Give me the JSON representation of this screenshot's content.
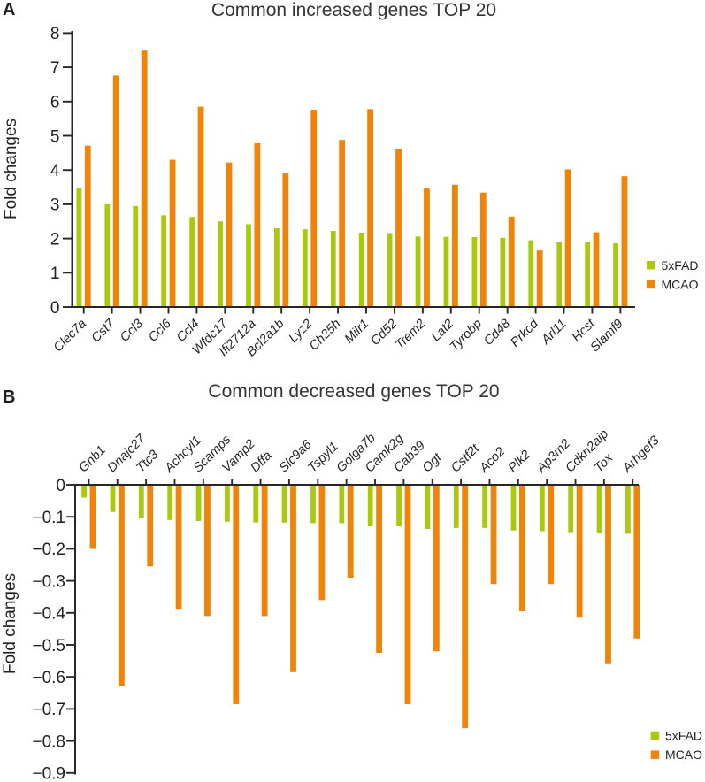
{
  "page": {
    "background": "#ffffff",
    "text_color": "#231f20"
  },
  "panels": [
    {
      "letter": "A",
      "title": "Common increased genes TOP 20"
    },
    {
      "letter": "B",
      "title": "Common decreased genes TOP 20"
    }
  ],
  "chart_data": [
    {
      "type": "bar",
      "panel": "A",
      "title": "Common increased genes TOP 20",
      "xlabel": "",
      "ylabel": "Fold changes",
      "ylim": [
        0,
        8
      ],
      "ytick_values": [
        0,
        1,
        2,
        3,
        4,
        5,
        6,
        7,
        8
      ],
      "ytick_labels": [
        "0",
        "1",
        "2",
        "3",
        "4",
        "5",
        "6",
        "7",
        "8"
      ],
      "grid": false,
      "legend_position": "right",
      "categories": [
        "Clec7a",
        "Cst7",
        "Ccl3",
        "Ccl6",
        "Ccl4",
        "Wfdc17",
        "Ifi2712a",
        "Bcl2a1b",
        "Lyz2",
        "Ch25h",
        "Milr1",
        "Cd52",
        "Trem2",
        "Lat2",
        "Tyrobp",
        "Cd48",
        "Prkcd",
        "Arl11",
        "Hcst",
        "Slamf9"
      ],
      "series": [
        {
          "name": "5xFAD",
          "color": "#a9c90f",
          "values": [
            3.48,
            3.0,
            2.95,
            2.68,
            2.63,
            2.5,
            2.42,
            2.3,
            2.27,
            2.22,
            2.17,
            2.16,
            2.06,
            2.05,
            2.04,
            2.02,
            1.95,
            1.91,
            1.9,
            1.86
          ]
        },
        {
          "name": "MCAO",
          "color": "#ef8408",
          "values": [
            4.71,
            6.76,
            7.49,
            4.3,
            5.85,
            4.22,
            4.78,
            3.9,
            5.76,
            4.88,
            5.78,
            4.62,
            3.46,
            3.57,
            3.34,
            2.64,
            1.65,
            4.02,
            2.18,
            3.82
          ]
        }
      ]
    },
    {
      "type": "bar",
      "panel": "B",
      "title": "Common decreased genes TOP 20",
      "xlabel": "",
      "ylabel": "Fold changes",
      "ylim": [
        -0.9,
        0
      ],
      "ytick_values": [
        0,
        -0.1,
        -0.2,
        -0.3,
        -0.4,
        -0.5,
        -0.6,
        -0.7,
        -0.8,
        -0.9
      ],
      "ytick_labels": [
        "0",
        "−0.1",
        "−0.2",
        "−0.3",
        "−0.4",
        "−0.5",
        "−0.6",
        "−0.7",
        "−0.8",
        "−0.9"
      ],
      "grid": false,
      "legend_position": "right",
      "categories": [
        "Gnb1",
        "Dnajc27",
        "Ttc3",
        "Achcyl1",
        "Scamps",
        "Vamp2",
        "Dffa",
        "Slc9a6",
        "Tspyl1",
        "Golga7b",
        "Camk2g",
        "Cab39",
        "Ogt",
        "Cstf2t",
        "Aco2",
        "Plk2",
        "Ap3m2",
        "Cdkn2aip",
        "Tox",
        "Arhgef3"
      ],
      "series": [
        {
          "name": "5xFAD",
          "color": "#a9c90f",
          "values": [
            -0.04,
            -0.085,
            -0.105,
            -0.11,
            -0.113,
            -0.115,
            -0.118,
            -0.118,
            -0.12,
            -0.12,
            -0.13,
            -0.13,
            -0.138,
            -0.135,
            -0.135,
            -0.143,
            -0.145,
            -0.148,
            -0.15,
            -0.153
          ]
        },
        {
          "name": "MCAO",
          "color": "#ef8408",
          "values": [
            -0.2,
            -0.63,
            -0.255,
            -0.39,
            -0.41,
            -0.685,
            -0.41,
            -0.585,
            -0.36,
            -0.29,
            -0.525,
            -0.685,
            -0.52,
            -0.76,
            -0.31,
            -0.395,
            -0.31,
            -0.415,
            -0.56,
            -0.48
          ]
        }
      ]
    }
  ]
}
